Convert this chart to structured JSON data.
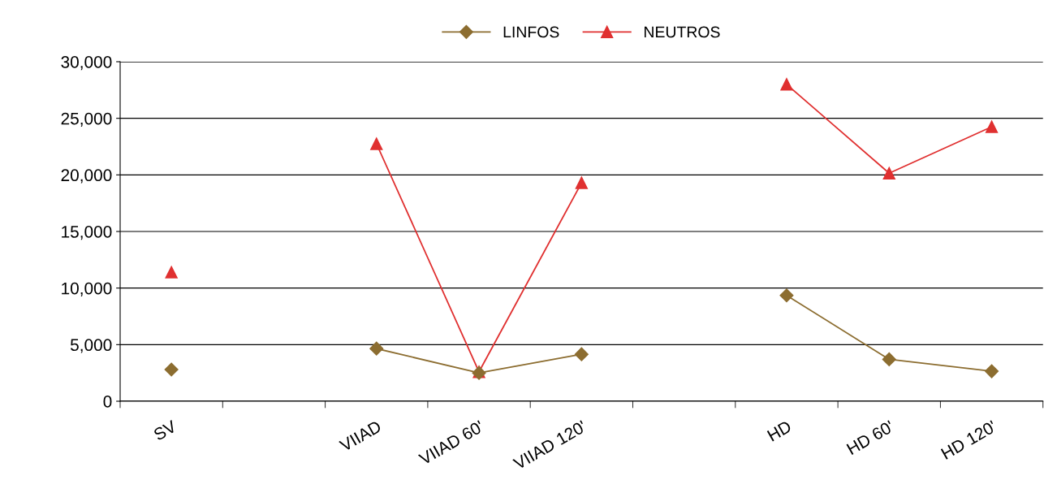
{
  "chart_data": {
    "type": "line",
    "categories": [
      "SV",
      null,
      "VIIAD",
      "VIIAD 60'",
      "VIIAD 120'",
      null,
      "HD",
      "HD 60'",
      "HD 120'"
    ],
    "series": [
      {
        "name": "LINFOS",
        "color": "#8c6d30",
        "marker": "diamond",
        "values": [
          2800,
          null,
          4650,
          2500,
          4150,
          null,
          9350,
          3700,
          2650
        ]
      },
      {
        "name": "NEUTROS",
        "color": "#e03030",
        "marker": "triangle",
        "values": [
          11400,
          null,
          22750,
          2600,
          19300,
          null,
          28000,
          20150,
          24250
        ]
      }
    ],
    "ylim": [
      0,
      30000
    ],
    "yticks": [
      {
        "value": 0,
        "label": "0"
      },
      {
        "value": 5000,
        "label": "5,000"
      },
      {
        "value": 10000,
        "label": "10,000"
      },
      {
        "value": 15000,
        "label": "15,000"
      },
      {
        "value": 20000,
        "label": "20,000"
      },
      {
        "value": 25000,
        "label": "25,000"
      },
      {
        "value": 30000,
        "label": "30,000"
      }
    ],
    "grid": "y",
    "legend": "top",
    "line_style": "solid"
  }
}
